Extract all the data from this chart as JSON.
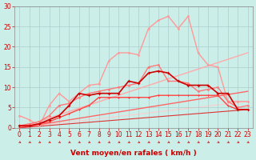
{
  "xlabel": "Vent moyen/en rafales ( km/h )",
  "background_color": "#cceee8",
  "grid_color": "#aacccc",
  "xmin": 0,
  "xmax": 23,
  "ymin": 0,
  "ymax": 30,
  "yticks": [
    0,
    5,
    10,
    15,
    20,
    25,
    30
  ],
  "xticks": [
    0,
    1,
    2,
    3,
    4,
    5,
    6,
    7,
    8,
    9,
    10,
    11,
    12,
    13,
    14,
    15,
    16,
    17,
    18,
    19,
    20,
    21,
    22,
    23
  ],
  "lines": [
    {
      "x": [
        0,
        1,
        2,
        3,
        4,
        5,
        6,
        7,
        8,
        9,
        10,
        11,
        12,
        13,
        14,
        15,
        16,
        17,
        18,
        19,
        20,
        21,
        22,
        23
      ],
      "y": [
        3.0,
        2.0,
        0.5,
        5.5,
        8.5,
        6.5,
        8.5,
        10.5,
        10.8,
        16.5,
        18.5,
        18.5,
        18.0,
        24.5,
        26.5,
        27.5,
        24.5,
        27.5,
        18.5,
        15.5,
        15.0,
        6.5,
        6.5,
        6.5
      ],
      "color": "#ff9999",
      "lw": 1.0,
      "marker": "o",
      "ms": 2.0,
      "zorder": 3,
      "linestyle": "-"
    },
    {
      "x": [
        0,
        1,
        2,
        3,
        4,
        5,
        6,
        7,
        8,
        9,
        10,
        11,
        12,
        13,
        14,
        15,
        16,
        17,
        18,
        19,
        20,
        21,
        22,
        23
      ],
      "y": [
        0.5,
        1.0,
        1.5,
        3.0,
        5.5,
        6.0,
        7.5,
        8.5,
        9.0,
        9.5,
        10.0,
        10.5,
        11.0,
        15.0,
        15.5,
        11.5,
        11.5,
        11.0,
        9.0,
        9.5,
        10.0,
        6.5,
        5.0,
        5.5
      ],
      "color": "#ff7777",
      "lw": 1.0,
      "marker": "o",
      "ms": 2.0,
      "zorder": 3,
      "linestyle": "-"
    },
    {
      "x": [
        0,
        1,
        2,
        3,
        4,
        5,
        6,
        7,
        8,
        9,
        10,
        11,
        12,
        13,
        14,
        15,
        16,
        17,
        18,
        19,
        20,
        21,
        22,
        23
      ],
      "y": [
        0.5,
        0.5,
        1.0,
        2.0,
        3.0,
        5.5,
        8.5,
        8.0,
        8.5,
        8.5,
        8.5,
        11.5,
        11.0,
        13.5,
        14.0,
        13.5,
        11.5,
        10.5,
        10.5,
        10.5,
        8.5,
        8.5,
        4.5,
        4.5
      ],
      "color": "#cc0000",
      "lw": 1.2,
      "marker": "P",
      "ms": 2.5,
      "zorder": 4,
      "linestyle": "-"
    },
    {
      "x": [
        0,
        1,
        2,
        3,
        4,
        5,
        6,
        7,
        8,
        9,
        10,
        11,
        12,
        13,
        14,
        15,
        16,
        17,
        18,
        19,
        20,
        21,
        22,
        23
      ],
      "y": [
        0.5,
        0.5,
        1.0,
        1.5,
        2.5,
        3.5,
        4.5,
        5.5,
        7.5,
        7.5,
        7.5,
        7.5,
        7.5,
        7.5,
        8.0,
        8.0,
        8.0,
        8.0,
        8.0,
        8.0,
        8.0,
        5.5,
        4.5,
        4.5
      ],
      "color": "#ff4444",
      "lw": 1.0,
      "marker": "P",
      "ms": 2.0,
      "zorder": 3,
      "linestyle": "-"
    },
    {
      "x": [
        0,
        23
      ],
      "y": [
        0.0,
        18.5
      ],
      "color": "#ffaaaa",
      "lw": 1.0,
      "marker": null,
      "ms": 0,
      "zorder": 2,
      "linestyle": "-"
    },
    {
      "x": [
        0,
        23
      ],
      "y": [
        0.0,
        9.0
      ],
      "color": "#ff6666",
      "lw": 1.0,
      "marker": null,
      "ms": 0,
      "zorder": 2,
      "linestyle": "-"
    },
    {
      "x": [
        0,
        23
      ],
      "y": [
        0.0,
        6.5
      ],
      "color": "#ffcccc",
      "lw": 0.8,
      "marker": null,
      "ms": 0,
      "zorder": 1,
      "linestyle": "-"
    },
    {
      "x": [
        0,
        23
      ],
      "y": [
        0.0,
        4.5
      ],
      "color": "#dd3333",
      "lw": 0.8,
      "marker": null,
      "ms": 0,
      "zorder": 2,
      "linestyle": "-"
    }
  ],
  "arrow_color": "#cc2222",
  "xlabel_color": "#cc0000",
  "xlabel_fontsize": 6.5,
  "tick_fontsize": 5.5,
  "tick_color": "#cc0000"
}
